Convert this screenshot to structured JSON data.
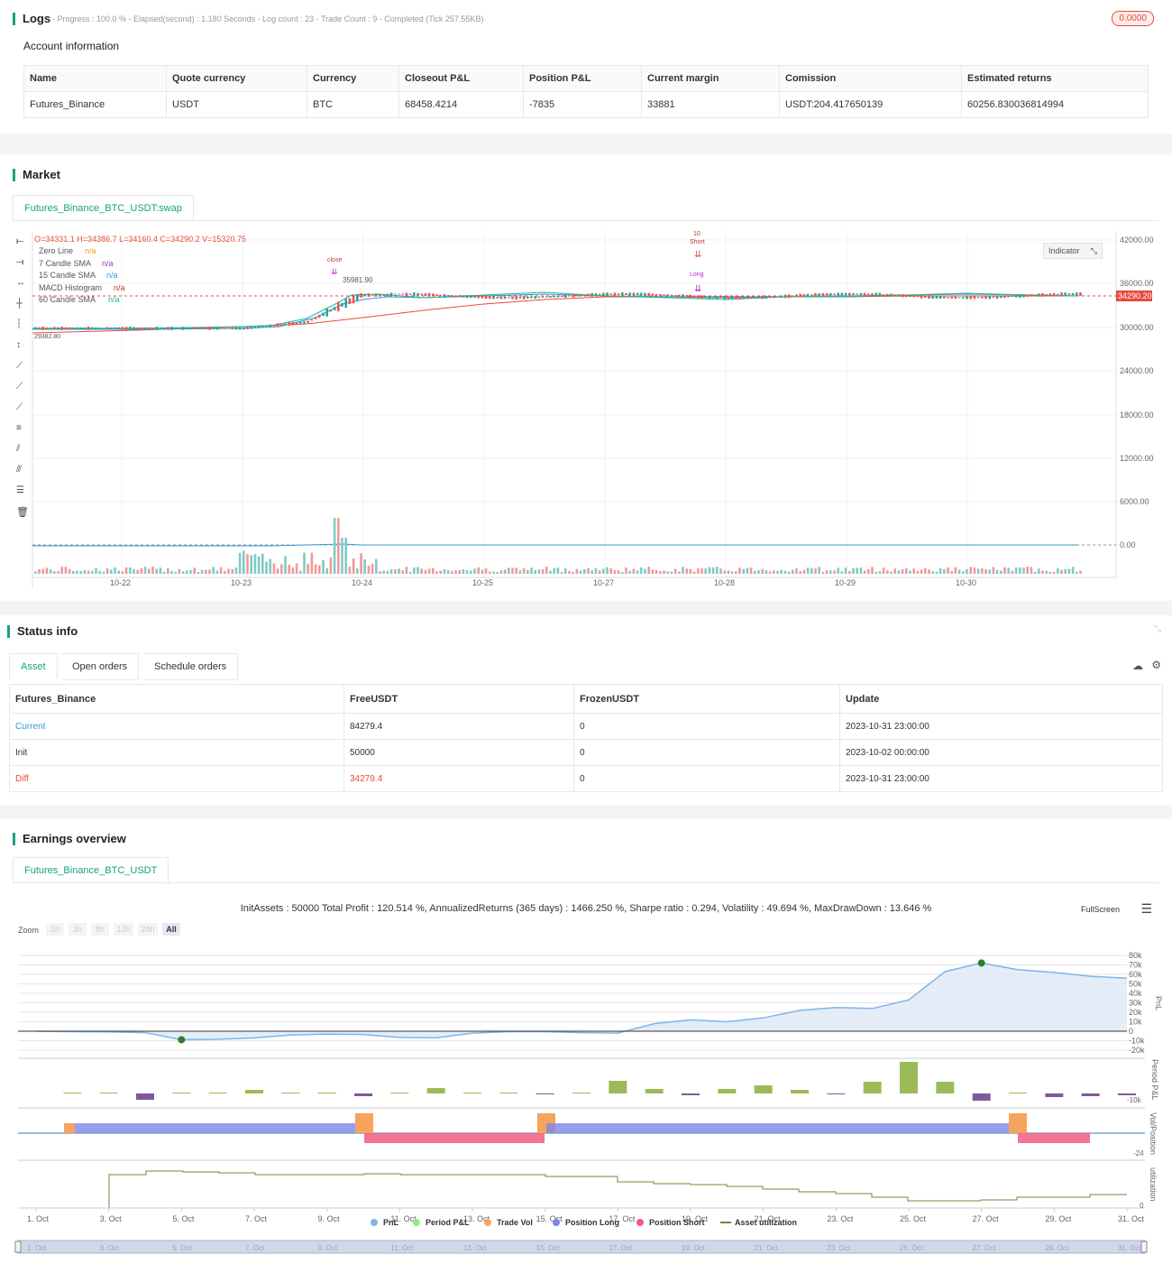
{
  "logs": {
    "title": "Logs",
    "summary": "- Progress : 100.0 % - Elapsed(second) : 1.180 Seconds - Log count : 23 - Trade Count : 9 - Completed (Tick 257.55KB)",
    "badge": "0.0000"
  },
  "account": {
    "heading": "Account information",
    "columns": [
      "Name",
      "Quote currency",
      "Currency",
      "Closeout P&L",
      "Position P&L",
      "Current margin",
      "Comission",
      "Estimated returns"
    ],
    "row": [
      "Futures_Binance",
      "USDT",
      "BTC",
      "68458.4214",
      "-7835",
      "33881",
      "USDT:204.417650139",
      "60256.830036814994"
    ]
  },
  "market": {
    "title": "Market",
    "tab": "Futures_Binance_BTC_USDT:swap",
    "indicator_button": "Indicator",
    "ohlc": "O=34331.1 H=34386.7 L=34160.4 C=34290.2 V=15320.75",
    "legend": [
      {
        "name": "Zero Line",
        "value": "n/a",
        "color": "#f39c12"
      },
      {
        "name": "7 Candle SMA",
        "value": "n/a",
        "color": "#8e44ad"
      },
      {
        "name": "15 Candle SMA",
        "value": "n/a",
        "color": "#3498db"
      },
      {
        "name": "MACD Histogram",
        "value": "n/a",
        "color": "#c0392b"
      },
      {
        "name": "60 Candle SMA",
        "value": "n/a",
        "color": "#1abc9c"
      }
    ],
    "price_ticks": [
      "42000.00",
      "36000.00",
      "30000.00",
      "24000.00",
      "18000.00",
      "12000.00",
      "6000.00",
      "0.00"
    ],
    "last_price": "34290.20",
    "date_ticks": [
      "10-22",
      "10-23",
      "10-24",
      "10-25",
      "10-27",
      "10-28",
      "10-29",
      "10-30"
    ],
    "annotations": {
      "close": "close",
      "high": "35981.90",
      "low": "29382.80",
      "short": "Short",
      "short_count": "10",
      "long": "Long"
    }
  },
  "status": {
    "title": "Status info",
    "tabs": [
      "Asset",
      "Open orders",
      "Schedule orders"
    ],
    "columns": [
      "Futures_Binance",
      "FreeUSDT",
      "FrozenUSDT",
      "Update"
    ],
    "rows": [
      {
        "label": "Current",
        "free": "84279.4",
        "frozen": "0",
        "update": "2023-10-31 23:00:00",
        "color": "#3498db"
      },
      {
        "label": "Init",
        "free": "50000",
        "frozen": "0",
        "update": "2023-10-02 00:00:00",
        "color": "#333333"
      },
      {
        "label": "Diff",
        "free": "34279.4",
        "frozen": "0",
        "update": "2023-10-31 23:00:00",
        "color": "#e74c3c"
      }
    ]
  },
  "earnings": {
    "title": "Earnings overview",
    "tab": "Futures_Binance_BTC_USDT",
    "summary": "InitAssets : 50000 Total Profit : 120.514 %, AnnualizedReturns (365 days) : 1466.250 %, Sharpe ratio : 0.294, Volatility : 49.694 %, MaxDrawDown : 13.646 %",
    "fullscreen": "FullScreen",
    "zoom_label": "Zoom",
    "zoom_options": [
      "1h",
      "3h",
      "8h",
      "12h",
      "24h",
      "All"
    ],
    "pnl_ticks": [
      "80k",
      "70k",
      "60k",
      "50k",
      "40k",
      "30k",
      "20k",
      "10k",
      "0",
      "-10k",
      "-20k"
    ],
    "pane_labels": [
      "PnL",
      "Period P&L",
      "Vol/Position",
      "utilization"
    ],
    "period_tick": "-10k",
    "pos_tick": "-24",
    "util_tick": "0",
    "date_ticks": [
      "1. Oct",
      "3. Oct",
      "5. Oct",
      "7. Oct",
      "9. Oct",
      "11. Oct",
      "13. Oct",
      "15. Oct",
      "17. Oct",
      "19. Oct",
      "21. Oct",
      "23. Oct",
      "25. Oct",
      "27. Oct",
      "29. Oct",
      "31. Oct"
    ],
    "legend": [
      {
        "name": "PnL",
        "color": "#7cb5ec"
      },
      {
        "name": "Period P&L",
        "color": "#90ed7d"
      },
      {
        "name": "Trade Vol",
        "color": "#f7a35c"
      },
      {
        "name": "Position Long",
        "color": "#8085e9"
      },
      {
        "name": "Position Short",
        "color": "#f15c80"
      },
      {
        "name": "Asset utilization",
        "color": "#8d7b3a"
      }
    ]
  },
  "chart_data": {
    "type": "area",
    "pnl_by_day": [
      0,
      -500,
      -700,
      -1500,
      -9000,
      -8500,
      -7000,
      -4000,
      -3000,
      -3500,
      -6500,
      -7000,
      -2000,
      -500,
      -500,
      -1500,
      -2000,
      8000,
      12000,
      10000,
      14000,
      22000,
      25000,
      24000,
      33000,
      63000,
      72000,
      65000,
      62000,
      58000,
      56000
    ],
    "period_pnl": [
      0,
      0,
      0,
      -7000,
      0,
      0,
      4000,
      0,
      0,
      -3000,
      0,
      6000,
      0,
      0,
      -1000,
      0,
      14000,
      5000,
      -2000,
      5000,
      9000,
      4000,
      -1000,
      13000,
      35000,
      13000,
      -8000,
      0,
      -4000,
      -3000,
      -2000
    ],
    "max_point": {
      "day": 26,
      "value": 72000
    },
    "min_point": {
      "day": 4,
      "value": -9000
    }
  }
}
